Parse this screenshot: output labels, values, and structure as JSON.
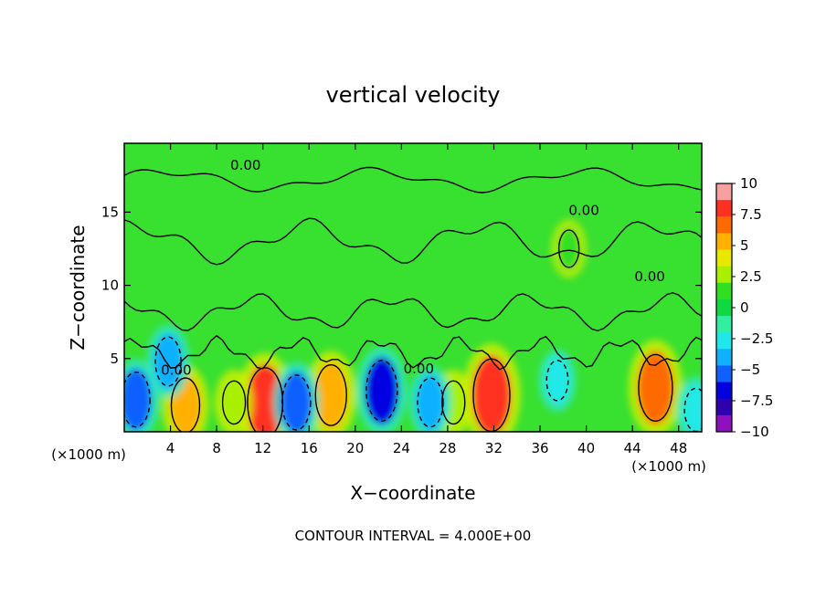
{
  "chart_data": {
    "type": "heatmap",
    "title": "vertical velocity",
    "xlabel": "X−coordinate",
    "ylabel": "Z−coordinate",
    "x_unit_left": "(×1000 m)",
    "x_unit_right": "(×1000 m)",
    "xlim": [
      0,
      50
    ],
    "ylim": [
      0,
      19.7
    ],
    "x_ticks": [
      4,
      8,
      12,
      16,
      20,
      24,
      28,
      32,
      36,
      40,
      44,
      48
    ],
    "y_ticks": [
      5,
      10,
      15
    ],
    "colorbar": {
      "min": -10,
      "max": 10,
      "tick_labels": [
        "10",
        "7.5",
        "5",
        "2.5",
        "0",
        "−2.5",
        "−5",
        "−7.5",
        "−10"
      ],
      "tick_values": [
        10,
        7.5,
        5,
        2.5,
        0,
        -2.5,
        -5,
        -7.5,
        -10
      ],
      "colors": [
        "#f8a0a0",
        "#ff3020",
        "#ff6a00",
        "#ffb000",
        "#e8e800",
        "#a8f000",
        "#30e020",
        "#10d840",
        "#30f0a0",
        "#20e8e8",
        "#10b0ff",
        "#1060ff",
        "#0000e0",
        "#3000b0",
        "#9010c0"
      ]
    },
    "contour_label": "0.00",
    "contour_interval_note": "CONTOUR INTERVAL = 4.000E+00",
    "features": [
      {
        "x": 5.3,
        "z": 1.8,
        "value": 5
      },
      {
        "x": 12.2,
        "z": 2.0,
        "value": 7.5
      },
      {
        "x": 17.9,
        "z": 2.5,
        "value": 6
      },
      {
        "x": 31.8,
        "z": 2.5,
        "value": 8
      },
      {
        "x": 46.0,
        "z": 3.0,
        "value": 7
      },
      {
        "x": 9.5,
        "z": 2.0,
        "value": 3
      },
      {
        "x": 28.5,
        "z": 2.0,
        "value": 3
      },
      {
        "x": 38.5,
        "z": 12.5,
        "value": 2
      },
      {
        "x": 1.0,
        "z": 2.2,
        "value": -5
      },
      {
        "x": 3.8,
        "z": 4.8,
        "value": -4
      },
      {
        "x": 14.9,
        "z": 2.0,
        "value": -5
      },
      {
        "x": 22.3,
        "z": 2.8,
        "value": -6
      },
      {
        "x": 26.5,
        "z": 2.0,
        "value": -4
      },
      {
        "x": 37.5,
        "z": 3.5,
        "value": -2.5
      },
      {
        "x": 49.5,
        "z": 1.5,
        "value": -3
      }
    ]
  }
}
